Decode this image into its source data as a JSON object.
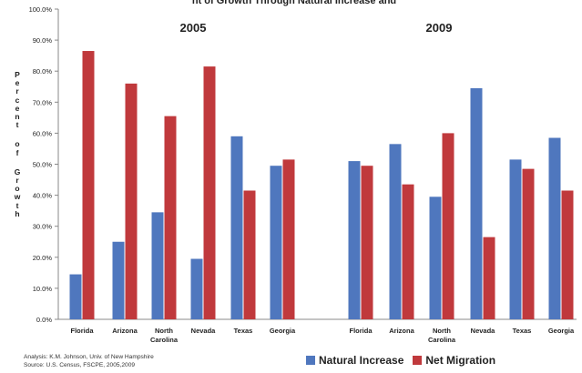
{
  "chart_data": {
    "type": "bar",
    "ylabel": "Percent of Growth",
    "ylim": [
      0,
      100
    ],
    "yticks": [
      "0.0%",
      "10.0%",
      "20.0%",
      "30.0%",
      "40.0%",
      "50.0%",
      "60.0%",
      "70.0%",
      "80.0%",
      "90.0%",
      "100.0%"
    ],
    "grid": false,
    "legend_position": "bottom-right",
    "panels": [
      {
        "title": "2005",
        "categories": [
          "Florida",
          "Arizona",
          "North Carolina",
          "Nevada",
          "Texas",
          "Georgia"
        ],
        "series": [
          {
            "name": "Natural Increase",
            "values": [
              14.5,
              25.0,
              34.5,
              19.5,
              59.0,
              49.5
            ]
          },
          {
            "name": "Net Migration",
            "values": [
              86.5,
              76.0,
              65.5,
              81.5,
              41.5,
              51.5
            ]
          }
        ]
      },
      {
        "title": "2009",
        "categories": [
          "Florida",
          "Arizona",
          "North Carolina",
          "Nevada",
          "Texas",
          "Georgia"
        ],
        "series": [
          {
            "name": "Natural Increase",
            "values": [
              51.0,
              56.5,
              39.5,
              74.5,
              51.5,
              58.5
            ]
          },
          {
            "name": "Net Migration",
            "values": [
              49.5,
              43.5,
              60.0,
              26.5,
              48.5,
              41.5
            ]
          }
        ]
      }
    ],
    "colors": {
      "Natural Increase": "#4f77be",
      "Net Migration": "#c0393c"
    }
  },
  "header_fragment": "nt of Growth Through Natural Increase and",
  "credit": {
    "line1": "Analysis: K.M. Johnson, Univ. of New Hampshire",
    "line2": "Source: U.S. Census, FSCPE, 2005,2009"
  },
  "legend": {
    "natural": "Natural Increase",
    "migration": "Net Migration"
  }
}
